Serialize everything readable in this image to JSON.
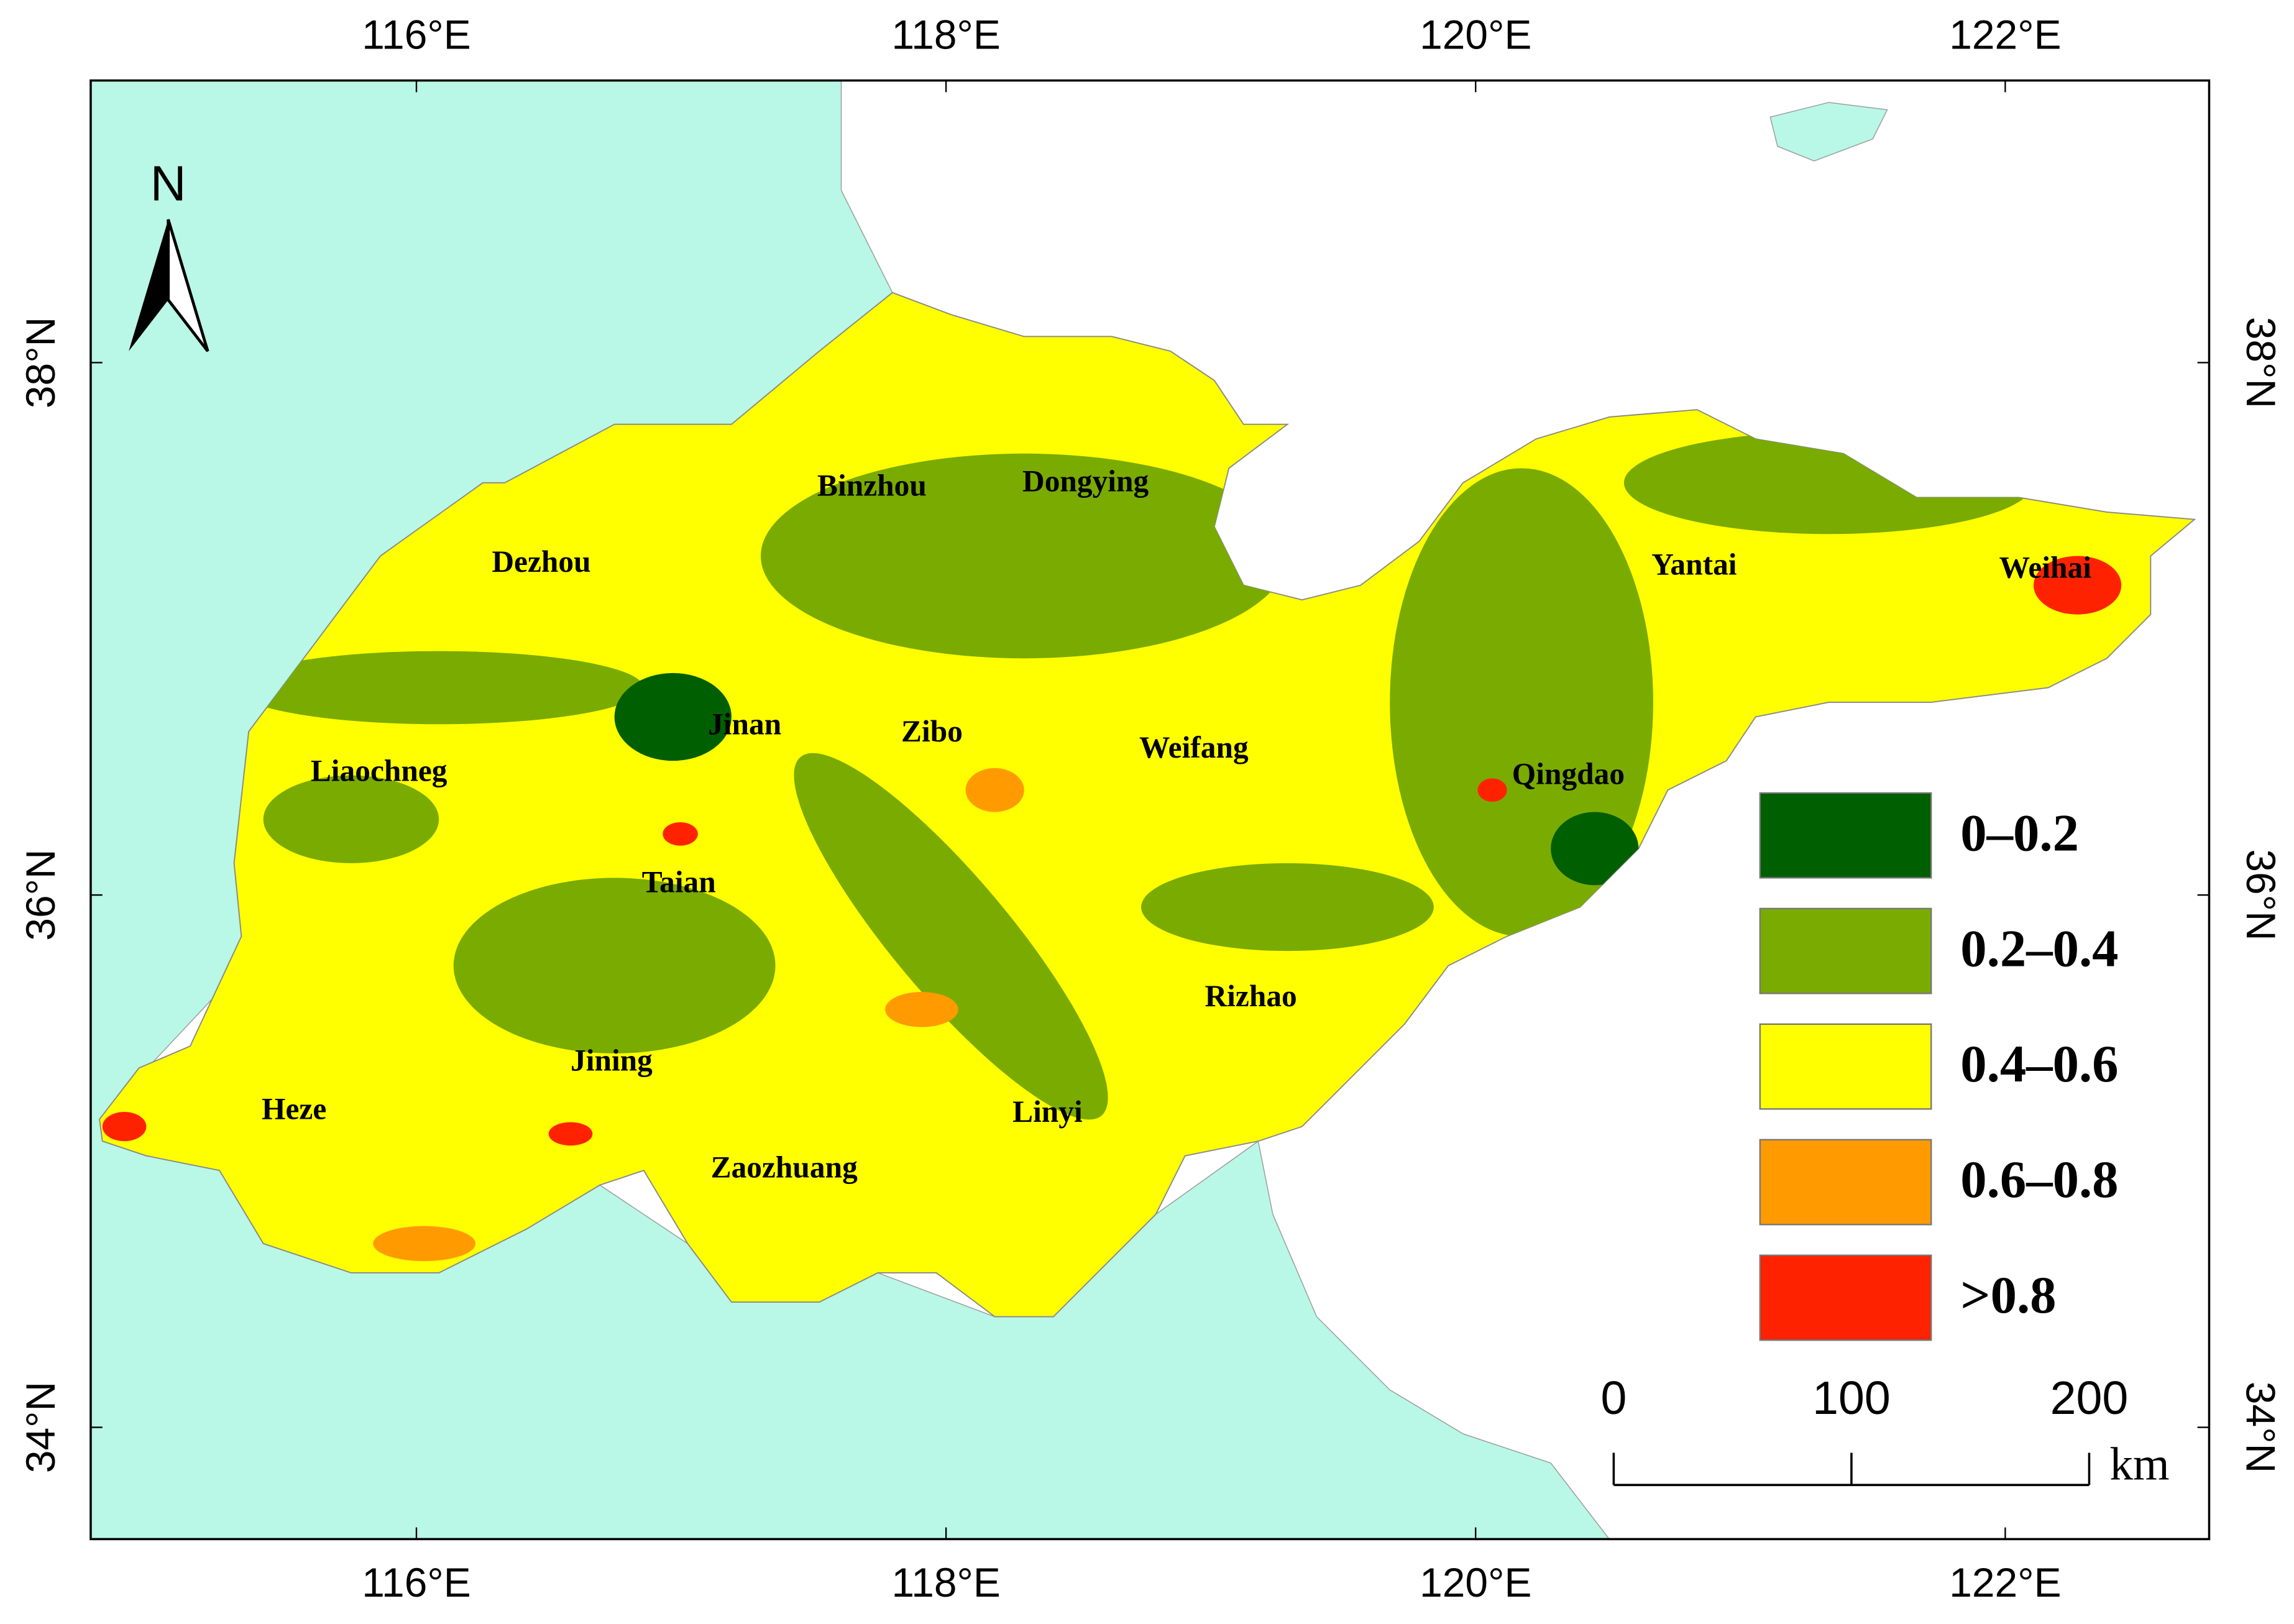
{
  "map": {
    "lon_range": [
      114.77,
      122.77
    ],
    "lat_range": [
      33.58,
      39.06
    ],
    "lon_ticks": [
      {
        "value": 116,
        "label": "116°E"
      },
      {
        "value": 118,
        "label": "118°E"
      },
      {
        "value": 120,
        "label": "120°E"
      },
      {
        "value": 122,
        "label": "122°E"
      }
    ],
    "lat_ticks": [
      {
        "value": 38,
        "label": "38°N"
      },
      {
        "value": 36,
        "label": "36°N"
      },
      {
        "value": 34,
        "label": "34°N"
      }
    ],
    "north": "N",
    "cities": [
      "Binzhou",
      "Dongying",
      "Dezhou",
      "Yantai",
      "Weihai",
      "Jinan",
      "Zibo",
      "Weifang",
      "Liaochneg",
      "Qingdao",
      "Taian",
      "Rizhao",
      "Jining",
      "Heze",
      "Linyi",
      "Zaozhuang"
    ],
    "legend": [
      {
        "label": "0–0.2",
        "color": "#005f00"
      },
      {
        "label": "0.2–0.4",
        "color": "#7aab00"
      },
      {
        "label": "0.4–0.6",
        "color": "#ffff00"
      },
      {
        "label": "0.6–0.8",
        "color": "#ff9a00"
      },
      {
        "label": ">0.8",
        "color": "#ff2200"
      }
    ],
    "scale": {
      "ticks": [
        0,
        100,
        200
      ],
      "unit": "km"
    }
  }
}
